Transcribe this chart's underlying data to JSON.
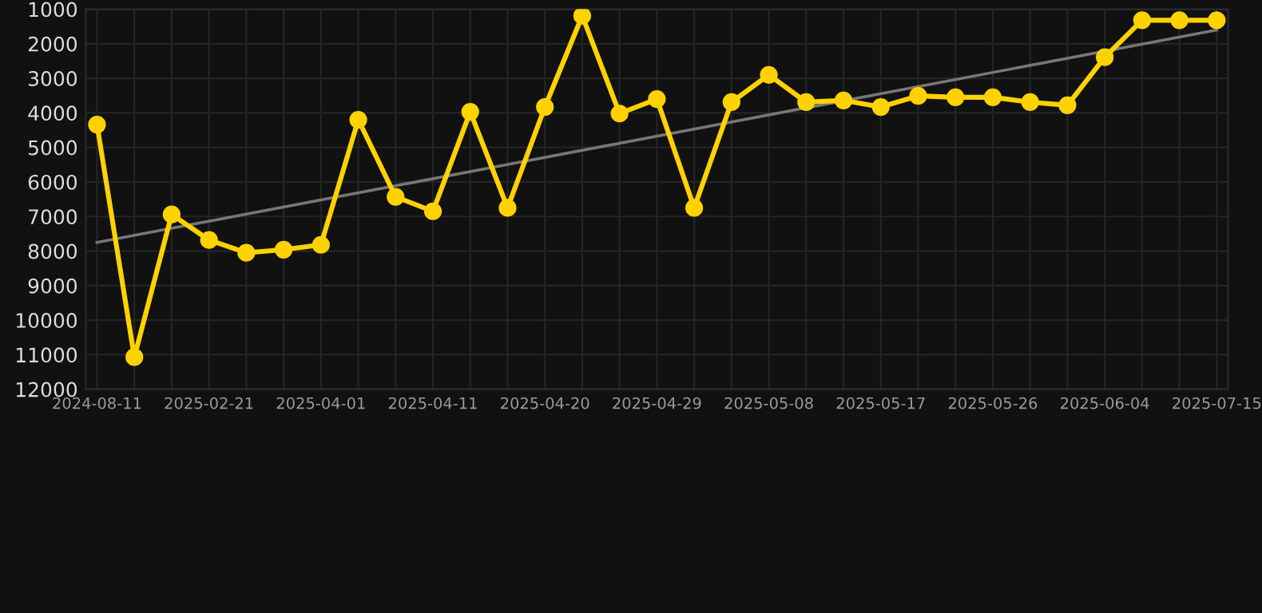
{
  "chart_data": {
    "type": "line",
    "categories": [
      "2024-08-11",
      null,
      null,
      "2025-02-21",
      null,
      null,
      "2025-04-01",
      null,
      null,
      "2025-04-11",
      null,
      null,
      "2025-04-20",
      null,
      null,
      "2025-04-29",
      null,
      null,
      "2025-05-08",
      null,
      null,
      "2025-05-17",
      null,
      null,
      "2025-05-26",
      null,
      null,
      "2025-06-04",
      null,
      null,
      "2025-07-15"
    ],
    "series": [
      {
        "color": "#ffd200",
        "marker": "circle",
        "values": [
          4340,
          11070,
          6940,
          7680,
          8050,
          7960,
          7820,
          4200,
          6430,
          6850,
          3970,
          6750,
          3830,
          1190,
          4020,
          3600,
          6750,
          3690,
          2900,
          3690,
          3640,
          3830,
          3510,
          3550,
          3550,
          3690,
          3780,
          2390,
          1320,
          1320,
          1320
        ]
      },
      {
        "type": "line",
        "color": "#777777",
        "marker": "none",
        "values": [
          7750,
          null,
          null,
          null,
          null,
          null,
          null,
          null,
          null,
          null,
          null,
          null,
          null,
          null,
          null,
          null,
          null,
          null,
          null,
          null,
          null,
          null,
          null,
          null,
          null,
          null,
          null,
          null,
          null,
          null,
          1600
        ]
      }
    ],
    "ylim": [
      12000,
      1000
    ],
    "yticks": [
      1000,
      2000,
      3000,
      4000,
      5000,
      6000,
      7000,
      8000,
      9000,
      10000,
      11000,
      12000
    ],
    "grid": true,
    "line_style": "solid"
  }
}
